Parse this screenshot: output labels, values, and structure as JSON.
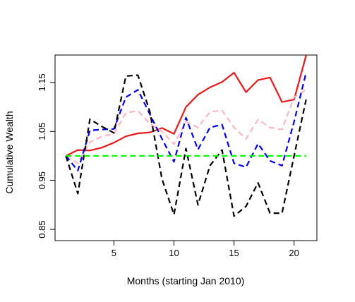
{
  "chart_data": {
    "type": "line",
    "title": "",
    "xlabel": "Months (starting Jan 2010)",
    "ylabel": "Cumulative Wealth",
    "xlim": [
      0.1,
      21.9
    ],
    "ylim": [
      0.827,
      1.206
    ],
    "xticks": [
      5,
      10,
      15,
      20
    ],
    "yticks": [
      0.85,
      0.95,
      1.05,
      1.15
    ],
    "xtick_labels": [
      "5",
      "10",
      "15",
      "20"
    ],
    "ytick_labels": [
      "0.85",
      "0.95",
      "1.05",
      "1.15"
    ],
    "grid": false,
    "legend": "none",
    "x": [
      1,
      2,
      3,
      4,
      5,
      6,
      7,
      8,
      9,
      10,
      11,
      12,
      13,
      14,
      15,
      16,
      17,
      18,
      19,
      20,
      21
    ],
    "series": [
      {
        "color": "#e41a1c",
        "dash": "solid",
        "values": [
          1.0,
          1.012,
          1.011,
          1.017,
          1.027,
          1.04,
          1.046,
          1.048,
          1.057,
          1.045,
          1.1,
          1.125,
          1.14,
          1.151,
          1.17,
          1.13,
          1.155,
          1.16,
          1.11,
          1.115,
          1.205
        ]
      },
      {
        "color": "#ffb6c1",
        "dash": "dashed",
        "values": [
          1.0,
          0.985,
          1.028,
          1.04,
          1.045,
          1.088,
          1.092,
          1.066,
          1.05,
          1.024,
          1.07,
          1.058,
          1.09,
          1.093,
          1.058,
          1.035,
          1.074,
          1.058,
          1.054,
          1.12,
          1.135
        ]
      },
      {
        "color": "#0000ee",
        "dash": "dashed",
        "values": [
          1.0,
          0.97,
          1.052,
          1.054,
          1.055,
          1.12,
          1.135,
          1.085,
          1.035,
          0.988,
          1.078,
          1.013,
          1.058,
          1.064,
          0.985,
          0.977,
          1.025,
          0.99,
          0.98,
          1.07,
          1.17
        ]
      },
      {
        "color": "#000000",
        "dash": "dashed",
        "values": [
          1.0,
          0.923,
          1.075,
          1.06,
          1.047,
          1.163,
          1.165,
          1.09,
          0.953,
          0.88,
          1.015,
          0.9,
          0.98,
          1.012,
          0.877,
          0.897,
          0.945,
          0.883,
          0.883,
          1.0,
          1.115
        ]
      },
      {
        "color": "#00ff00",
        "dash": "dashed",
        "values": [
          1.0,
          1.0,
          1.0,
          1.0,
          1.0,
          1.0,
          1.0,
          1.0,
          1.0,
          1.0,
          1.0,
          1.0,
          1.0,
          1.0,
          1.0,
          1.0,
          1.0,
          1.0,
          1.0,
          1.0,
          1.0
        ]
      }
    ]
  }
}
